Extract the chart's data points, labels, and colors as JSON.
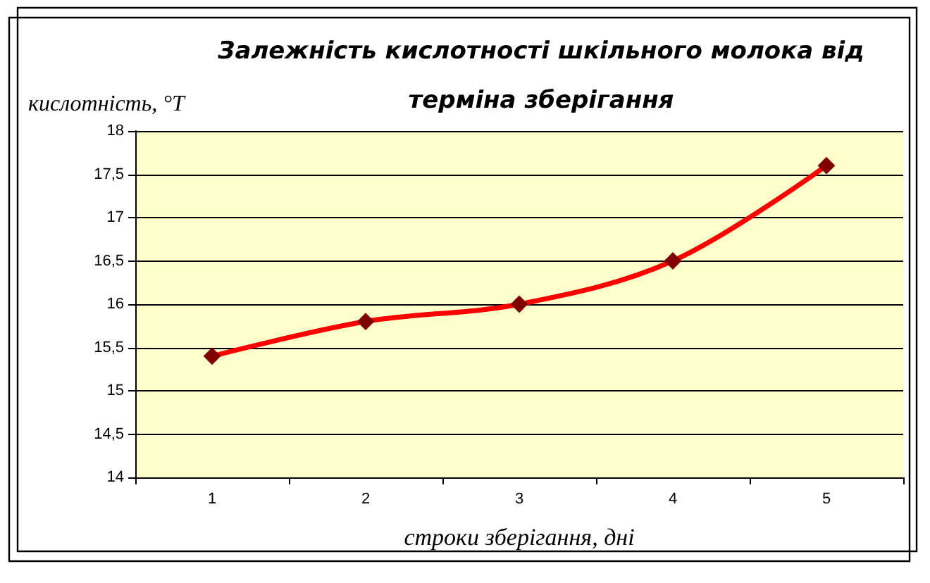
{
  "chart_data": {
    "type": "line",
    "title": "Залежність кислотності шкільного молока від терміна зберігання",
    "xlabel": "строки зберігання, дні",
    "ylabel": "кислотність, °T",
    "categories": [
      "1",
      "2",
      "3",
      "4",
      "5"
    ],
    "series": [
      {
        "color": "#ff0000",
        "values": [
          15.4,
          15.8,
          16.0,
          16.5,
          17.6
        ]
      }
    ],
    "ylim": [
      14,
      18
    ],
    "yticks": [
      14,
      {
        "value": 14.5,
        "label": "14,5"
      },
      15,
      {
        "value": 15.5,
        "label": "15,5"
      },
      16,
      {
        "value": 16.5,
        "label": "16,5"
      },
      17,
      {
        "value": 17.5,
        "label": "17,5"
      },
      18
    ],
    "grid": "y",
    "marker": "diamond",
    "line_style": "solid"
  }
}
